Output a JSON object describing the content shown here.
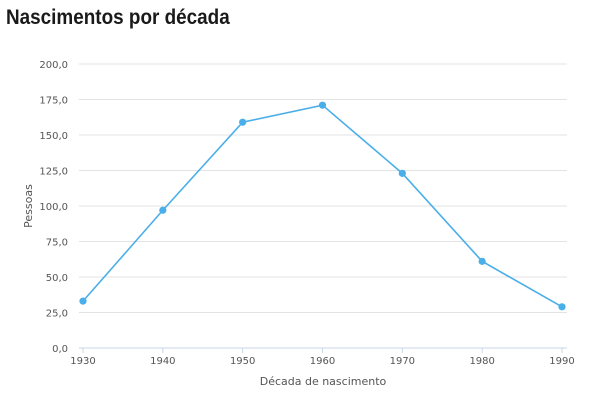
{
  "chart_data": {
    "type": "line",
    "title": "Nascimentos por década",
    "xlabel": "Década de nascimento",
    "ylabel": "Pessoas",
    "categories": [
      "1930",
      "1940",
      "1950",
      "1960",
      "1970",
      "1980",
      "1990"
    ],
    "values": [
      33,
      97,
      159,
      171,
      123,
      61,
      29
    ],
    "ylim": [
      0,
      200
    ],
    "yticks": [
      "0,0",
      "25,0",
      "50,0",
      "75,0",
      "100,0",
      "125,0",
      "150,0",
      "175,0",
      "200,0"
    ],
    "grid": true,
    "color": "#4aaee8"
  }
}
